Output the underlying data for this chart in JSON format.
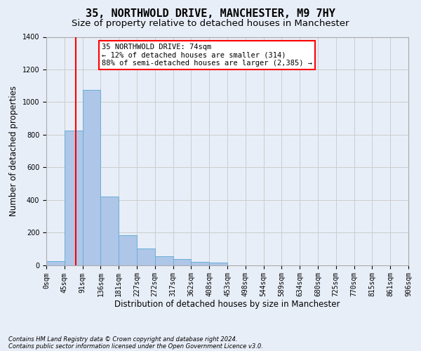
{
  "title": "35, NORTHWOLD DRIVE, MANCHESTER, M9 7HY",
  "subtitle": "Size of property relative to detached houses in Manchester",
  "xlabel": "Distribution of detached houses by size in Manchester",
  "ylabel": "Number of detached properties",
  "footnote1": "Contains HM Land Registry data © Crown copyright and database right 2024.",
  "footnote2": "Contains public sector information licensed under the Open Government Licence v3.0.",
  "bar_values": [
    25,
    825,
    1075,
    420,
    185,
    100,
    55,
    35,
    20,
    15,
    0,
    0,
    0,
    0,
    0,
    0,
    0,
    0,
    0,
    0
  ],
  "bin_labels": [
    "0sqm",
    "45sqm",
    "91sqm",
    "136sqm",
    "181sqm",
    "227sqm",
    "272sqm",
    "317sqm",
    "362sqm",
    "408sqm",
    "453sqm",
    "498sqm",
    "544sqm",
    "589sqm",
    "634sqm",
    "680sqm",
    "725sqm",
    "770sqm",
    "815sqm",
    "861sqm",
    "906sqm"
  ],
  "bar_color": "#aec6e8",
  "bar_edge_color": "#6aaed6",
  "annotation_text": "35 NORTHWOLD DRIVE: 74sqm\n← 12% of detached houses are smaller (314)\n88% of semi-detached houses are larger (2,385) →",
  "annotation_box_color": "white",
  "annotation_box_edge_color": "red",
  "vline_color": "red",
  "ylim": [
    0,
    1400
  ],
  "yticks": [
    0,
    200,
    400,
    600,
    800,
    1000,
    1200,
    1400
  ],
  "grid_color": "#cccccc",
  "background_color": "#e8eef8",
  "title_fontsize": 11,
  "subtitle_fontsize": 9.5,
  "axis_label_fontsize": 8.5,
  "tick_fontsize": 7,
  "footnote_fontsize": 6
}
